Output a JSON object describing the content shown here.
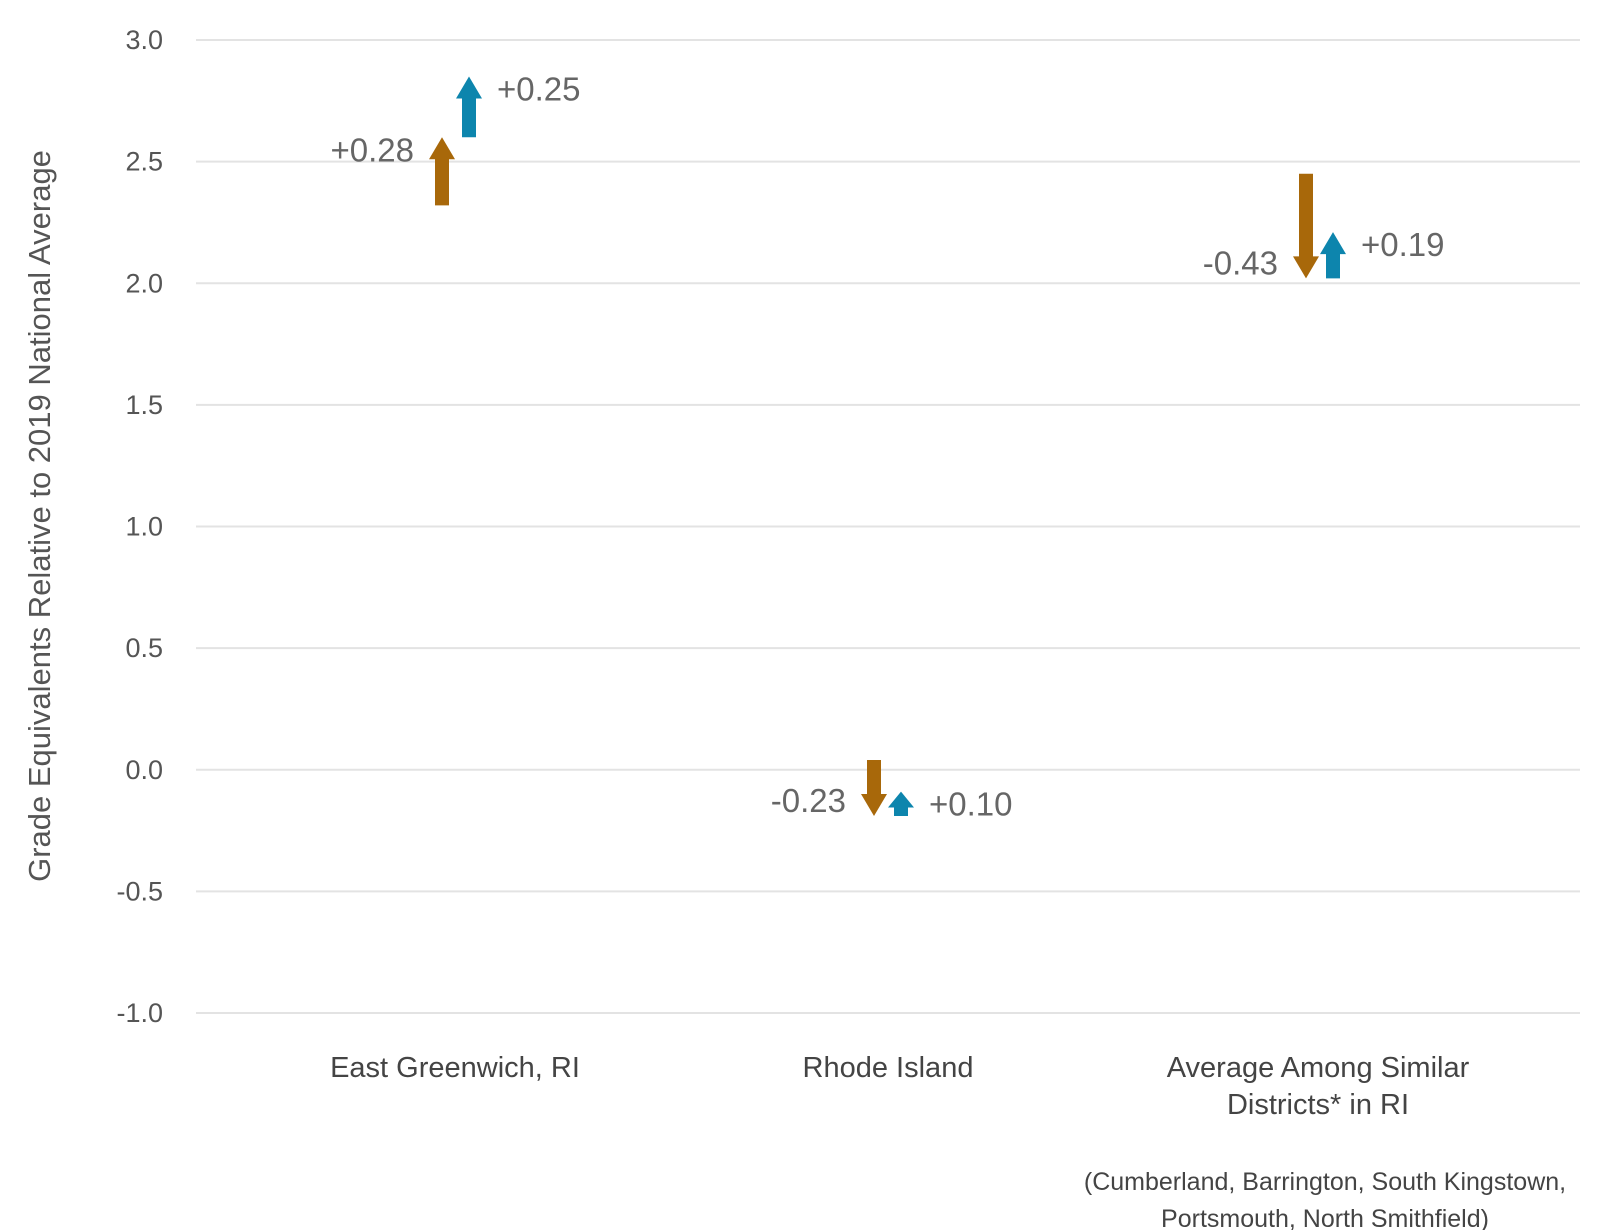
{
  "chart_data": {
    "type": "arrow",
    "ylabel": "Grade Equivalents Relative to 2019 National Average",
    "ylim": [
      -1.0,
      3.0
    ],
    "yticks": [
      "3.0",
      "2.5",
      "2.0",
      "1.5",
      "1.0",
      "0.5",
      "0.0",
      "-0.5",
      "-1.0"
    ],
    "grid": true,
    "categories": [
      {
        "lines": [
          "East Greenwich, RI"
        ]
      },
      {
        "lines": [
          "Rhode Island"
        ]
      },
      {
        "lines": [
          "Average Among Similar",
          "Districts* in RI"
        ]
      }
    ],
    "footnote_lines": [
      "(Cumberland, Barrington, South Kingstown,",
      "Portsmouth, North Smithfield)"
    ],
    "series": [
      {
        "color": "#a8680a",
        "arrows": [
          {
            "start": 2.32,
            "end": 2.6,
            "label": "+0.28"
          },
          {
            "start": 0.04,
            "end": -0.19,
            "label": "-0.23"
          },
          {
            "start": 2.45,
            "end": 2.02,
            "label": "-0.43"
          }
        ]
      },
      {
        "color": "#0d85ad",
        "arrows": [
          {
            "start": 2.6,
            "end": 2.85,
            "label": "+0.25"
          },
          {
            "start": -0.19,
            "end": -0.09,
            "label": "+0.10"
          },
          {
            "start": 2.02,
            "end": 2.21,
            "label": "+0.19"
          }
        ]
      }
    ]
  }
}
